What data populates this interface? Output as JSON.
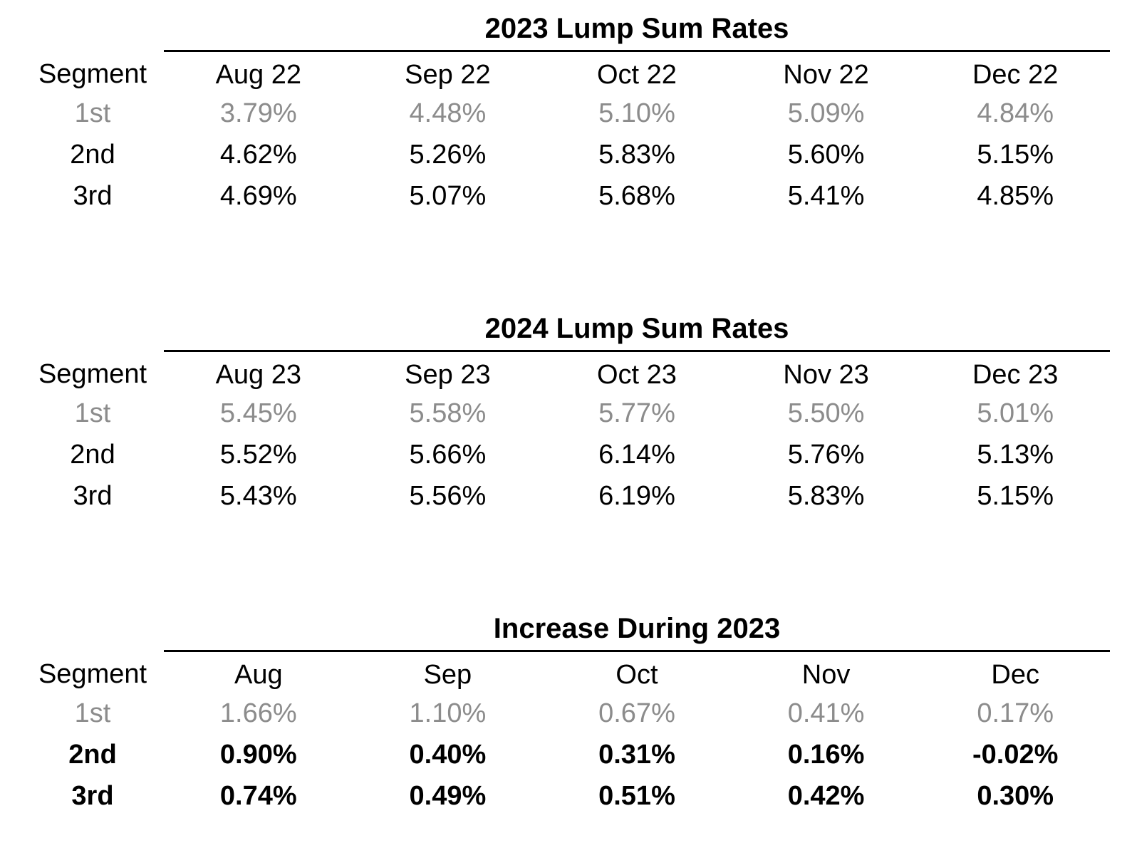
{
  "colors": {
    "background": "#ffffff",
    "text": "#000000",
    "muted_row_text": "#8c8c8c",
    "rule_line": "#000000"
  },
  "chart_data": [
    {
      "type": "table",
      "title": "2023 Lump Sum Rates",
      "row_header": "Segment",
      "columns": [
        "Aug 22",
        "Sep 22",
        "Oct 22",
        "Nov 22",
        "Dec 22"
      ],
      "rows": [
        {
          "segment": "1st",
          "style": "muted",
          "values": [
            "3.79%",
            "4.48%",
            "5.10%",
            "5.09%",
            "4.84%"
          ]
        },
        {
          "segment": "2nd",
          "style": "normal",
          "values": [
            "4.62%",
            "5.26%",
            "5.83%",
            "5.60%",
            "5.15%"
          ]
        },
        {
          "segment": "3rd",
          "style": "normal",
          "values": [
            "4.69%",
            "5.07%",
            "5.68%",
            "5.41%",
            "4.85%"
          ]
        }
      ]
    },
    {
      "type": "table",
      "title": "2024 Lump Sum Rates",
      "row_header": "Segment",
      "columns": [
        "Aug 23",
        "Sep 23",
        "Oct 23",
        "Nov 23",
        "Dec 23"
      ],
      "rows": [
        {
          "segment": "1st",
          "style": "muted",
          "values": [
            "5.45%",
            "5.58%",
            "5.77%",
            "5.50%",
            "5.01%"
          ]
        },
        {
          "segment": "2nd",
          "style": "normal",
          "values": [
            "5.52%",
            "5.66%",
            "6.14%",
            "5.76%",
            "5.13%"
          ]
        },
        {
          "segment": "3rd",
          "style": "normal",
          "values": [
            "5.43%",
            "5.56%",
            "6.19%",
            "5.83%",
            "5.15%"
          ]
        }
      ]
    },
    {
      "type": "table",
      "title": "Increase During 2023",
      "row_header": "Segment",
      "columns": [
        "Aug",
        "Sep",
        "Oct",
        "Nov",
        "Dec"
      ],
      "rows": [
        {
          "segment": "1st",
          "style": "muted",
          "values": [
            "1.66%",
            "1.10%",
            "0.67%",
            "0.41%",
            "0.17%"
          ]
        },
        {
          "segment": "2nd",
          "style": "bold",
          "values": [
            "0.90%",
            "0.40%",
            "0.31%",
            "0.16%",
            "-0.02%"
          ]
        },
        {
          "segment": "3rd",
          "style": "bold",
          "values": [
            "0.74%",
            "0.49%",
            "0.51%",
            "0.42%",
            "0.30%"
          ]
        }
      ]
    }
  ]
}
